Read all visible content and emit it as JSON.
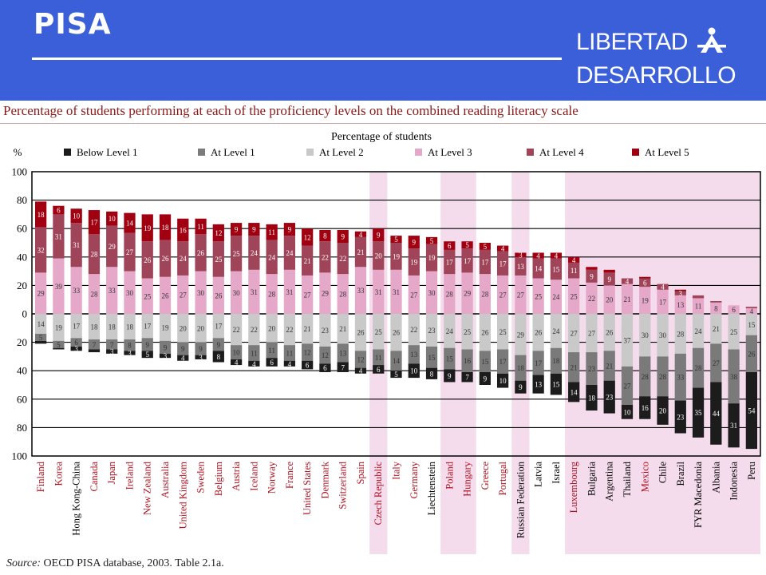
{
  "header": {
    "title": "PISA",
    "logo_line1": "LIBERTAD",
    "logo_line2": "DESARROLLO"
  },
  "footer": {
    "source_label": "Source:",
    "source_text": "OECD PISA database, 2003. Table 2.1a."
  },
  "colors": {
    "banner": "#3a5fd8",
    "below1": "#1c1c1c",
    "level1": "#7a7a7a",
    "level2": "#c9c9c9",
    "level3": "#e6a8c8",
    "level4": "#a0445a",
    "level5": "#a00010",
    "highlight": "#f4dcec",
    "red_label": "#b01020"
  },
  "chart_data": {
    "type": "bar",
    "title": "Percentage of students performing at each of the proficiency levels on the combined reading literacy scale",
    "ylabel": "Percentage of students",
    "y_unit": "%",
    "ylim": [
      -100,
      100
    ],
    "yticks": [
      100,
      80,
      60,
      40,
      20,
      0,
      20,
      40,
      60,
      80,
      100
    ],
    "grid": true,
    "legend_position": "top",
    "series_order": [
      "Below Level 1",
      "At Level 1",
      "At Level 2",
      "At Level 3",
      "At Level 4",
      "At Level 5"
    ],
    "series_direction": {
      "Below Level 1": "down",
      "At Level 1": "down",
      "At Level 2": "down",
      "At Level 3": "up",
      "At Level 4": "up",
      "At Level 5": "up"
    },
    "categories": [
      "Finland",
      "Korea",
      "Hong Kong-China",
      "Canada",
      "Japan",
      "Ireland",
      "New Zealand",
      "Australia",
      "United Kingdom",
      "Sweden",
      "Belgium",
      "Austria",
      "Iceland",
      "Norway",
      "France",
      "United States",
      "Denmark",
      "Switzerland",
      "Spain",
      "Czech Republic",
      "Italy",
      "Germany",
      "Liechtenstein",
      "Poland",
      "Hungary",
      "Greece",
      "Portugal",
      "Russian Federation",
      "Latvia",
      "Israel",
      "Luxembourg",
      "Bulgaria",
      "Argentina",
      "Thailand",
      "Mexico",
      "Chile",
      "Brazil",
      "FYR Macedonia",
      "Albania",
      "Indonesia",
      "Peru"
    ],
    "label_red": [
      true,
      true,
      false,
      true,
      true,
      true,
      true,
      true,
      true,
      true,
      true,
      true,
      true,
      true,
      true,
      true,
      true,
      true,
      true,
      true,
      true,
      true,
      false,
      true,
      true,
      true,
      true,
      false,
      false,
      false,
      true,
      false,
      false,
      false,
      true,
      false,
      false,
      false,
      false,
      false,
      false
    ],
    "highlight_groups": [
      [
        19,
        19
      ],
      [
        23,
        24
      ],
      [
        27,
        27
      ],
      [
        30,
        40
      ]
    ],
    "series": [
      {
        "name": "Below Level 1",
        "values": [
          2,
          1,
          3,
          2,
          3,
          3,
          5,
          3,
          4,
          3,
          8,
          4,
          4,
          6,
          4,
          6,
          6,
          7,
          4,
          6,
          5,
          10,
          8,
          9,
          7,
          9,
          10,
          9,
          13,
          15,
          14,
          18,
          23,
          10,
          16,
          20,
          23,
          35,
          44,
          31,
          54
        ]
      },
      {
        "name": "At Level 1",
        "values": [
          5,
          5,
          6,
          7,
          7,
          8,
          9,
          9,
          9,
          9,
          9,
          10,
          11,
          11,
          11,
          12,
          12,
          13,
          12,
          11,
          14,
          13,
          15,
          15,
          16,
          15,
          17,
          18,
          17,
          18,
          21,
          23,
          21,
          27,
          28,
          28,
          33,
          28,
          27,
          38,
          26
        ]
      },
      {
        "name": "At Level 2",
        "values": [
          14,
          19,
          17,
          18,
          18,
          18,
          17,
          19,
          20,
          20,
          17,
          22,
          22,
          20,
          22,
          21,
          23,
          21,
          26,
          25,
          26,
          22,
          23,
          24,
          25,
          26,
          25,
          29,
          26,
          24,
          27,
          27,
          26,
          37,
          30,
          30,
          28,
          24,
          21,
          25,
          15
        ]
      },
      {
        "name": "At Level 3",
        "values": [
          29,
          39,
          33,
          28,
          33,
          30,
          25,
          26,
          27,
          30,
          26,
          30,
          31,
          28,
          31,
          27,
          29,
          28,
          33,
          31,
          31,
          27,
          30,
          28,
          29,
          28,
          27,
          27,
          25,
          24,
          25,
          22,
          20,
          21,
          19,
          17,
          13,
          11,
          8,
          6,
          4
        ]
      },
      {
        "name": "At Level 4",
        "values": [
          32,
          31,
          31,
          28,
          29,
          27,
          26,
          26,
          24,
          26,
          25,
          25,
          24,
          24,
          24,
          21,
          22,
          22,
          21,
          20,
          19,
          19,
          19,
          17,
          17,
          17,
          17,
          13,
          14,
          15,
          11,
          9,
          9,
          4,
          6,
          4,
          3,
          2,
          1,
          0,
          1
        ]
      },
      {
        "name": "At Level 5",
        "values": [
          18,
          6,
          10,
          17,
          10,
          14,
          19,
          18,
          16,
          11,
          12,
          9,
          9,
          11,
          9,
          12,
          8,
          9,
          4,
          9,
          5,
          9,
          5,
          6,
          5,
          5,
          4,
          3,
          4,
          4,
          4,
          2,
          2,
          0,
          1,
          0,
          1,
          0,
          0,
          0,
          0
        ]
      }
    ]
  }
}
